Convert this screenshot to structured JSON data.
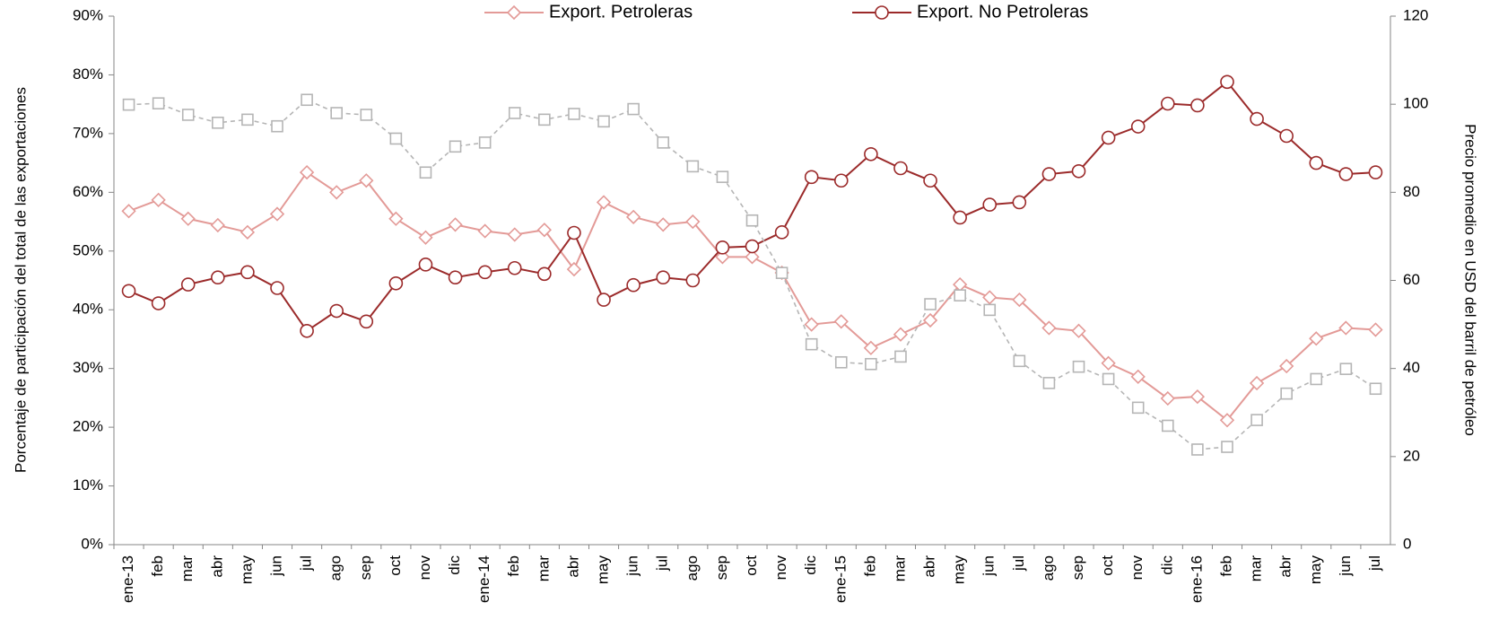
{
  "chart_data": {
    "type": "line",
    "y_label": "Porcentaje  de  participación del total de las exportaciones",
    "y2_label": "Precio promedio en USD del barril de petróleo",
    "categories": [
      "ene-13",
      "feb",
      "mar",
      "abr",
      "may",
      "jun",
      "jul",
      "ago",
      "sep",
      "oct",
      "nov",
      "dic",
      "ene-14",
      "feb",
      "mar",
      "abr",
      "may",
      "jun",
      "jul",
      "ago",
      "sep",
      "oct",
      "nov",
      "dic",
      "ene-15",
      "feb",
      "mar",
      "abr",
      "may",
      "jun",
      "jul",
      "ago",
      "sep",
      "oct",
      "nov",
      "dic",
      "ene-16",
      "feb",
      "mar",
      "abr",
      "may",
      "jun",
      "jul"
    ],
    "ylim": [
      0,
      90
    ],
    "yticks": [
      {
        "value": 0,
        "label": "0%"
      },
      {
        "value": 10,
        "label": "10%"
      },
      {
        "value": 20,
        "label": "20%"
      },
      {
        "value": 30,
        "label": "30%"
      },
      {
        "value": 40,
        "label": "40%"
      },
      {
        "value": 50,
        "label": "50%"
      },
      {
        "value": 60,
        "label": "60%"
      },
      {
        "value": 70,
        "label": "70%"
      },
      {
        "value": 80,
        "label": "80%"
      },
      {
        "value": 90,
        "label": "90%"
      }
    ],
    "y2lim": [
      0,
      120
    ],
    "y2ticks": [
      0,
      20,
      40,
      60,
      80,
      100,
      120
    ],
    "legend": "top",
    "series": [
      {
        "name": "Export. Petroleras",
        "color": "#e39a97",
        "marker": "diamond",
        "values": [
          56.8,
          58.7,
          55.5,
          54.4,
          53.2,
          56.3,
          63.4,
          60.0,
          62.0,
          55.5,
          52.3,
          54.5,
          53.4,
          52.8,
          53.6,
          46.9,
          58.3,
          55.8,
          54.5,
          55.0,
          49.0,
          49.0,
          46.3,
          37.5,
          38.0,
          33.5,
          35.8,
          38.2,
          44.3,
          42.1,
          41.7,
          36.9,
          36.4,
          30.9,
          28.6,
          24.9,
          25.2,
          21.2,
          27.5,
          30.4,
          35.1,
          36.9,
          36.6
        ]
      },
      {
        "name": "Export. No Petroleras",
        "color": "#9b2a2a",
        "marker": "circle",
        "values": [
          43.2,
          41.1,
          44.3,
          45.5,
          46.4,
          43.7,
          36.4,
          39.8,
          38.0,
          44.5,
          47.7,
          45.5,
          46.4,
          47.1,
          46.1,
          53.1,
          41.7,
          44.2,
          45.5,
          45.0,
          50.6,
          50.8,
          53.2,
          62.6,
          62.0,
          66.5,
          64.1,
          62.0,
          55.7,
          57.9,
          58.3,
          63.1,
          63.6,
          69.3,
          71.2,
          75.1,
          74.8,
          78.8,
          72.5,
          69.6,
          65.0,
          63.1,
          63.4
        ]
      },
      {
        "color": "#b5b5b5",
        "marker": "square",
        "dashed": true,
        "axis": "y2",
        "values": [
          99.9,
          100.2,
          97.6,
          95.8,
          96.5,
          95.0,
          101.0,
          98.0,
          97.6,
          92.2,
          84.5,
          90.4,
          91.3,
          98.0,
          96.5,
          97.8,
          96.1,
          98.9,
          91.3,
          85.9,
          83.5,
          73.6,
          61.7,
          45.5,
          41.4,
          41.0,
          42.7,
          54.6,
          56.6,
          53.3,
          41.7,
          36.7,
          40.4,
          37.6,
          31.1,
          27.0,
          21.6,
          22.2,
          28.3,
          34.3,
          37.6,
          39.9,
          35.4
        ]
      }
    ]
  }
}
